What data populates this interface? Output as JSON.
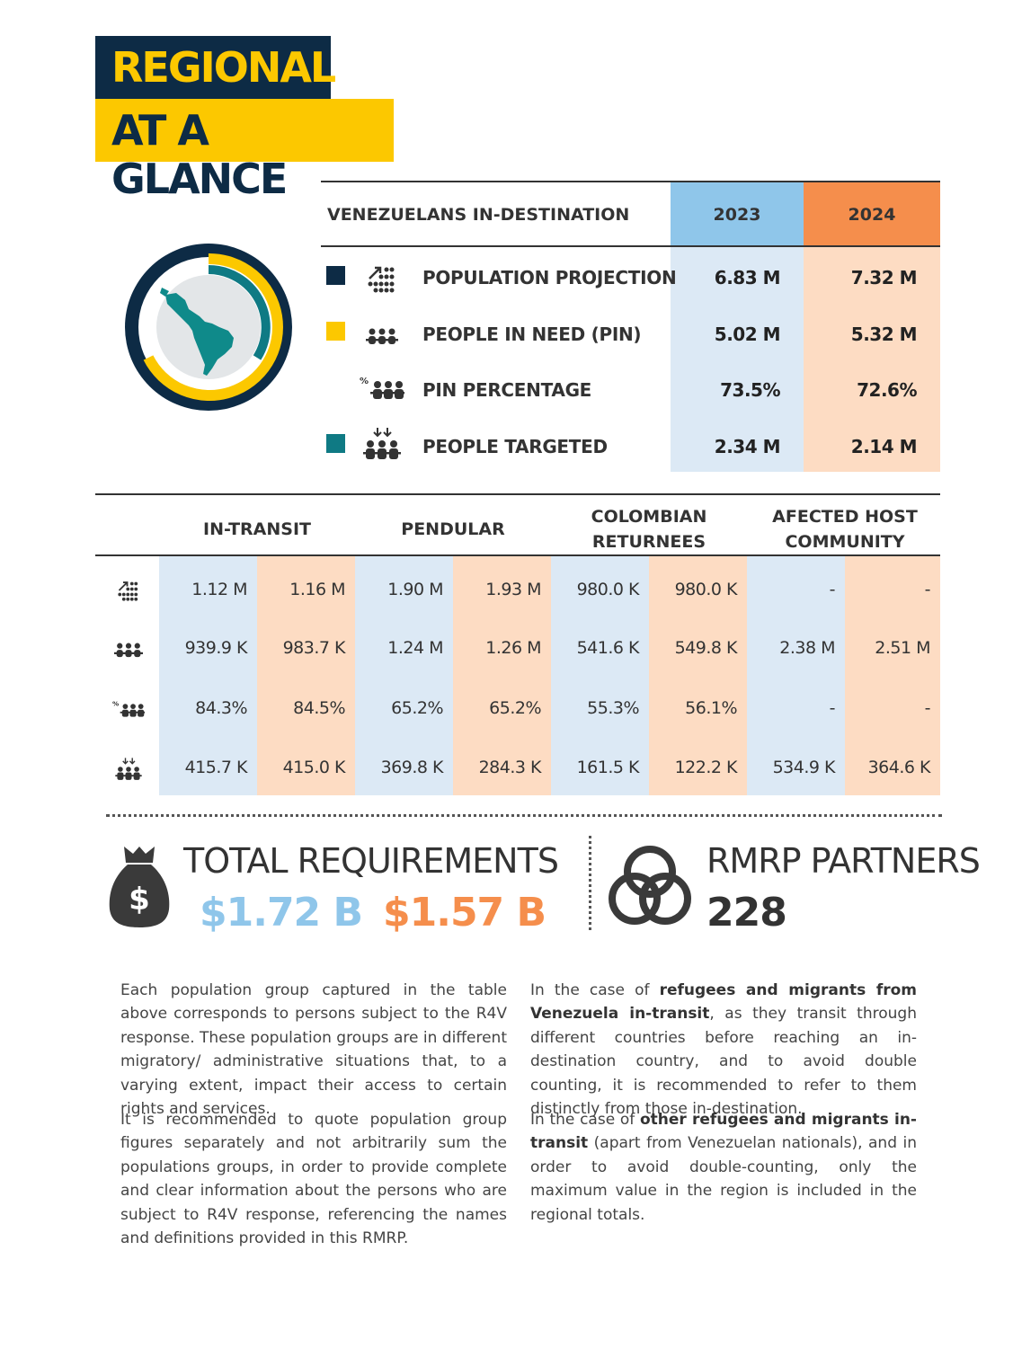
{
  "title": {
    "line1": "REGIONAL",
    "line2": "AT A GLANCE"
  },
  "indest": {
    "header": "VENEZUELANS IN-DESTINATION",
    "year1": "2023",
    "year2": "2024",
    "rows": [
      {
        "label": "POPULATION PROJECTION",
        "v2023": "6.83 M",
        "v2024": "7.32 M",
        "icon": "population-projection-icon",
        "marker": "#0d2b45"
      },
      {
        "label": "PEOPLE IN NEED (PIN)",
        "v2023": "5.02 M",
        "v2024": "5.32 M",
        "icon": "people-in-need-icon",
        "marker": "#fcc800"
      },
      {
        "label": "PIN PERCENTAGE",
        "v2023": "73.5%",
        "v2024": "72.6%",
        "icon": "pin-percentage-icon"
      },
      {
        "label": "PEOPLE TARGETED",
        "v2023": "2.34 M",
        "v2024": "2.14 M",
        "icon": "people-targeted-icon",
        "marker": "#0f7a84"
      }
    ]
  },
  "groups": {
    "headers": [
      {
        "line1": "IN-TRANSIT",
        "line2": ""
      },
      {
        "line1": "PENDULAR",
        "line2": ""
      },
      {
        "line1": "COLOMBIAN",
        "line2": "RETURNEES"
      },
      {
        "line1": "AFECTED HOST",
        "line2": "COMMUNITY"
      }
    ],
    "rows": [
      [
        "1.12 M",
        "1.16 M",
        "1.90 M",
        "1.93 M",
        "980.0 K",
        "980.0 K",
        "-",
        "-"
      ],
      [
        "939.9 K",
        "983.7 K",
        "1.24 M",
        "1.26 M",
        "541.6 K",
        "549.8 K",
        "2.38 M",
        "2.51 M"
      ],
      [
        "84.3%",
        "84.5%",
        "65.2%",
        "65.2%",
        "55.3%",
        "56.1%",
        "-",
        "-"
      ],
      [
        "415.7 K",
        "415.0 K",
        "369.8 K",
        "284.3 K",
        "161.5 K",
        "122.2 K",
        "534.9 K",
        "364.6 K"
      ]
    ]
  },
  "requirements": {
    "label": "TOTAL REQUIREMENTS",
    "v2023": "$1.72 B",
    "v2024": "$1.57 B"
  },
  "partners": {
    "label": "RMRP PARTNERS",
    "count": "228"
  },
  "text": {
    "p1": "Each population group captured in the table above corresponds to persons subject to the R4V response. These population groups are in different migratory/ administrative situations that, to a varying extent, impact their access to certain rights and services.",
    "p2": "It is recommended to quote population group figures separately and not arbitrarily sum the populations groups, in order to provide complete and clear information about the persons who are subject to R4V response, referencing the names and definitions provided in this RMRP.",
    "p3_pre": "In the case of ",
    "p3_bold": "refugees and migrants from Venezuela in-transit",
    "p3_post": ", as they transit through different countries before reaching an in-destination country, and to avoid double counting, it is recommended to refer to them distinctly from those in-destination.",
    "p4_pre": "In the case of ",
    "p4_bold": "other refugees and migrants in-transit",
    "p4_post": " (apart from Venezuelan nationals), and in order to avoid double-counting, only the maximum value in the region is included in the regional totals."
  },
  "colors": {
    "navy": "#0d2b45",
    "yellow": "#fcc800",
    "teal": "#0f7a84",
    "blue2023": "#8fc6ea",
    "orange2024": "#f58e4c"
  }
}
